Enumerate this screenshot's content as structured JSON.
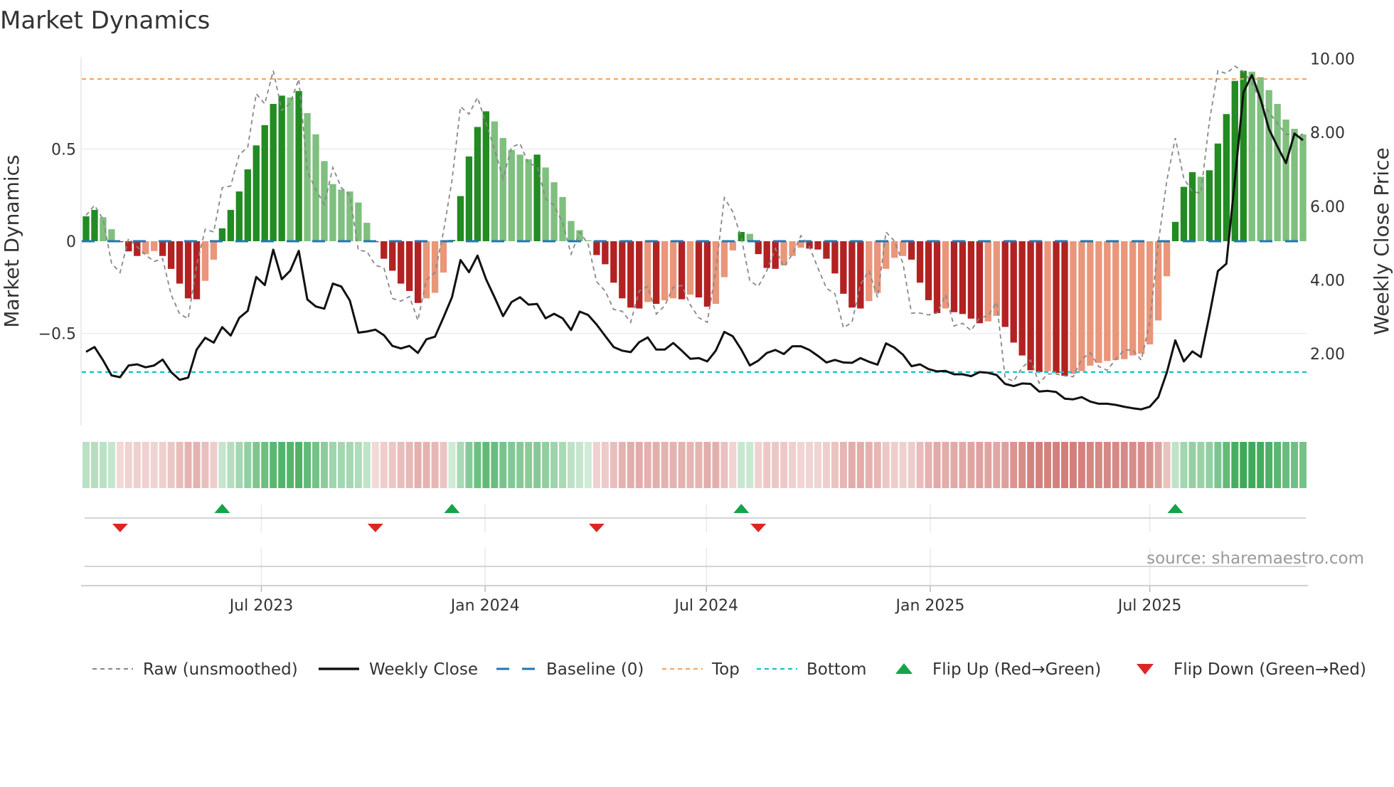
{
  "chart_data": {
    "type": "bar",
    "title": "Market Dynamics",
    "ylabel": "Market Dynamics",
    "ylabel_right": "Weekly Close Price",
    "ylim": [
      -1.0,
      1.0
    ],
    "ylim_right": [
      0.05,
      10.05
    ],
    "y_ticks": [
      {
        "value": 0.5,
        "label": "0.5"
      },
      {
        "value": 0,
        "label": "0"
      },
      {
        "value": -0.5,
        "label": "−0.5"
      }
    ],
    "y_right_ticks": [
      {
        "value": 10,
        "label": "10.00"
      },
      {
        "value": 8,
        "label": "8.00"
      },
      {
        "value": 6,
        "label": "6.00"
      },
      {
        "value": 4,
        "label": "4.00"
      },
      {
        "value": 2,
        "label": "2.00"
      }
    ],
    "x_unit": "week index (weekly bars)",
    "x_ticks": [
      {
        "value": 21.1,
        "label": "Jul 2023"
      },
      {
        "value": 47.4,
        "label": "Jan 2024"
      },
      {
        "value": 73.4,
        "label": "Jul 2024"
      },
      {
        "value": 99.7,
        "label": "Jan 2025"
      },
      {
        "value": 125.5,
        "label": "Jul 2025"
      }
    ],
    "top_level": 0.88,
    "bottom_level": -0.71,
    "baseline": 0,
    "grid": true,
    "series": [
      {
        "name": "Market Dynamics",
        "kind": "bar",
        "values": [
          0.135,
          0.17,
          0.13,
          0.065,
          -0.005,
          -0.055,
          -0.08,
          -0.07,
          -0.053,
          -0.08,
          -0.15,
          -0.23,
          -0.31,
          -0.315,
          -0.215,
          -0.1,
          0.07,
          0.17,
          0.27,
          0.39,
          0.52,
          0.63,
          0.745,
          0.79,
          0.78,
          0.815,
          0.695,
          0.58,
          0.435,
          0.31,
          0.28,
          0.27,
          0.21,
          0.1,
          -0.005,
          -0.095,
          -0.16,
          -0.23,
          -0.27,
          -0.335,
          -0.31,
          -0.28,
          -0.17,
          0.007,
          0.245,
          0.46,
          0.62,
          0.705,
          0.65,
          0.56,
          0.495,
          0.47,
          0.445,
          0.47,
          0.4,
          0.32,
          0.24,
          0.11,
          0.06,
          0.005,
          -0.075,
          -0.125,
          -0.225,
          -0.31,
          -0.36,
          -0.365,
          -0.33,
          -0.34,
          -0.32,
          -0.31,
          -0.315,
          -0.29,
          -0.305,
          -0.355,
          -0.34,
          -0.195,
          -0.05,
          0.05,
          0.04,
          -0.07,
          -0.145,
          -0.15,
          -0.13,
          -0.08,
          -0.035,
          -0.04,
          -0.045,
          -0.095,
          -0.175,
          -0.285,
          -0.36,
          -0.365,
          -0.325,
          -0.28,
          -0.15,
          -0.09,
          -0.08,
          -0.1,
          -0.225,
          -0.32,
          -0.39,
          -0.365,
          -0.385,
          -0.395,
          -0.42,
          -0.445,
          -0.435,
          -0.405,
          -0.465,
          -0.55,
          -0.62,
          -0.7,
          -0.71,
          -0.705,
          -0.715,
          -0.73,
          -0.72,
          -0.705,
          -0.675,
          -0.66,
          -0.65,
          -0.645,
          -0.64,
          -0.62,
          -0.61,
          -0.56,
          -0.43,
          -0.19,
          0.105,
          0.295,
          0.375,
          0.35,
          0.385,
          0.53,
          0.69,
          0.87,
          0.925,
          0.92,
          0.89,
          0.82,
          0.745,
          0.66,
          0.61,
          0.58
        ]
      },
      {
        "name": "Raw (unsmoothed)",
        "kind": "line",
        "values": [
          0.14,
          0.195,
          0.12,
          -0.12,
          -0.17,
          0.015,
          -0.03,
          -0.075,
          -0.11,
          -0.095,
          -0.29,
          -0.395,
          -0.42,
          -0.13,
          0.065,
          0.05,
          0.29,
          0.3,
          0.47,
          0.51,
          0.8,
          0.745,
          0.925,
          0.71,
          0.75,
          0.88,
          0.38,
          0.28,
          0.2,
          0.4,
          0.29,
          0.25,
          -0.05,
          -0.055,
          -0.13,
          -0.145,
          -0.31,
          -0.325,
          -0.3,
          -0.43,
          -0.21,
          -0.17,
          0.05,
          0.33,
          0.73,
          0.69,
          0.78,
          0.64,
          0.5,
          0.34,
          0.51,
          0.53,
          0.42,
          0.41,
          0.23,
          0.195,
          0.1,
          -0.07,
          0.05,
          -0.015,
          -0.22,
          -0.27,
          -0.37,
          -0.38,
          -0.44,
          -0.27,
          -0.245,
          -0.395,
          -0.35,
          -0.25,
          -0.24,
          -0.345,
          -0.415,
          -0.44,
          -0.16,
          0.235,
          0.16,
          0.02,
          -0.215,
          -0.245,
          -0.16,
          -0.04,
          -0.14,
          -0.07,
          0.03,
          -0.03,
          -0.145,
          -0.255,
          -0.285,
          -0.47,
          -0.44,
          -0.235,
          -0.16,
          -0.305,
          0.05,
          0,
          -0.12,
          -0.39,
          -0.39,
          -0.4,
          -0.39,
          -0.29,
          -0.46,
          -0.445,
          -0.485,
          -0.415,
          -0.405,
          -0.33,
          -0.74,
          -0.76,
          -0.685,
          -0.645,
          -0.77,
          -0.72,
          -0.72,
          -0.73,
          -0.735,
          -0.64,
          -0.605,
          -0.68,
          -0.7,
          -0.64,
          -0.59,
          -0.59,
          -0.645,
          -0.44,
          -0.01,
          0.33,
          0.56,
          0.34,
          0.27,
          0.26,
          0.65,
          0.925,
          0.91,
          0.95,
          0.92,
          0.86,
          0.76,
          0.7,
          0.64,
          0.58,
          0.58,
          0.58
        ]
      },
      {
        "name": "Weekly Close",
        "kind": "line",
        "axis": "right",
        "values": [
          2.05,
          2.18,
          1.82,
          1.41,
          1.36,
          1.68,
          1.71,
          1.63,
          1.68,
          1.84,
          1.5,
          1.29,
          1.35,
          2.11,
          2.43,
          2.3,
          2.72,
          2.49,
          2.97,
          3.16,
          4.08,
          3.86,
          4.82,
          4.02,
          4.25,
          4.79,
          3.47,
          3.28,
          3.22,
          3.9,
          3.82,
          3.44,
          2.57,
          2.6,
          2.65,
          2.5,
          2.21,
          2.14,
          2.21,
          2.02,
          2.39,
          2.46,
          2.98,
          3.53,
          4.54,
          4.21,
          4.66,
          4.02,
          3.53,
          3.02,
          3.4,
          3.53,
          3.33,
          3.35,
          2.96,
          3.08,
          2.96,
          2.64,
          3.14,
          3.05,
          2.79,
          2.48,
          2.18,
          2.08,
          2.04,
          2.31,
          2.44,
          2.11,
          2.11,
          2.29,
          2.08,
          1.86,
          1.88,
          1.79,
          2.08,
          2.59,
          2.47,
          2.11,
          1.68,
          1.81,
          2.02,
          2.1,
          1.99,
          2.2,
          2.2,
          2.1,
          1.94,
          1.76,
          1.83,
          1.76,
          1.75,
          1.88,
          1.78,
          1.7,
          2.28,
          2.16,
          1.97,
          1.66,
          1.71,
          1.58,
          1.52,
          1.53,
          1.44,
          1.44,
          1.39,
          1.5,
          1.48,
          1.42,
          1.18,
          1.12,
          1.19,
          1.18,
          0.97,
          0.99,
          0.96,
          0.78,
          0.76,
          0.82,
          0.7,
          0.64,
          0.64,
          0.61,
          0.56,
          0.52,
          0.49,
          0.56,
          0.82,
          1.49,
          2.36,
          1.79,
          2.06,
          1.91,
          3.03,
          4.24,
          4.44,
          6.72,
          9.09,
          9.56,
          8.92,
          8.09,
          7.62,
          7.17,
          7.97,
          7.79
        ]
      }
    ],
    "flip_up": [
      16,
      43,
      77,
      128
    ],
    "flip_down": [
      4,
      34,
      60,
      79
    ],
    "legend": {
      "placement": "bottom",
      "entries": [
        "Raw (unsmoothed)",
        "Weekly Close",
        "Baseline (0)",
        "Top",
        "Bottom",
        "Flip Up (Red→Green)",
        "Flip Down (Green→Red)"
      ]
    },
    "annotation": "source: sharemaestro.com",
    "colors": {
      "pos_strong": "#228b22",
      "pos_weak": "#7fbf7f",
      "neg_strong": "#b22222",
      "neg_weak": "#e9967a",
      "raw": "#888888",
      "close": "#111111",
      "baseline": "#1f77b4",
      "top": "#f4a460",
      "bottom": "#17becf",
      "flip_up": "#16a34a",
      "flip_down": "#dc2626"
    }
  }
}
